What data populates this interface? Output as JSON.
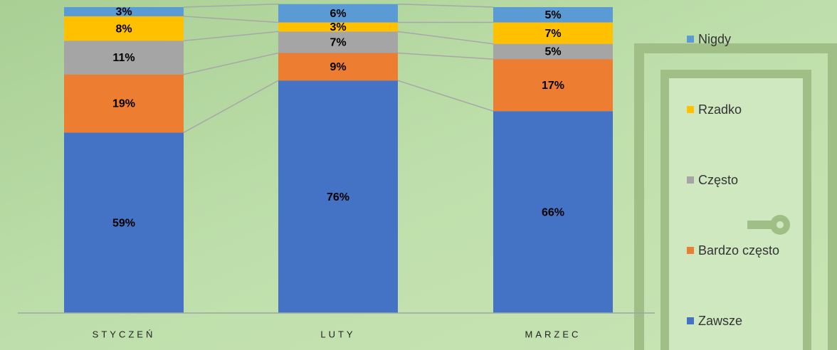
{
  "chart_data": {
    "type": "stacked-bar",
    "categories": [
      "STYCZEŃ",
      "LUTY",
      "MARZEC"
    ],
    "ylim": [
      0,
      100
    ],
    "series": [
      {
        "name": "Zawsze",
        "color": "#4472c4",
        "values": [
          59,
          76,
          66
        ],
        "value_labels": [
          "59%",
          "76%",
          "66%"
        ]
      },
      {
        "name": "Bardzo często",
        "color": "#ed7d31",
        "values": [
          19,
          9,
          17
        ],
        "value_labels": [
          "19%",
          "9%",
          "17%"
        ]
      },
      {
        "name": "Często",
        "color": "#a5a5a5",
        "values": [
          11,
          7,
          5
        ],
        "value_labels": [
          "11%",
          "7%",
          "5%"
        ]
      },
      {
        "name": "Rzadko",
        "color": "#ffc000",
        "values": [
          8,
          3,
          7
        ],
        "value_labels": [
          "8%",
          "3%",
          "7%"
        ]
      },
      {
        "name": "Nigdy",
        "color": "#5b9bd5",
        "values": [
          3,
          6,
          5
        ],
        "value_labels": [
          "3%",
          "6%",
          "5%"
        ]
      }
    ],
    "legend": "right"
  }
}
